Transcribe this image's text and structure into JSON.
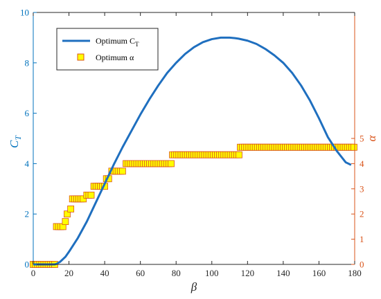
{
  "chart_data": {
    "type": "line",
    "xlabel": "β",
    "ylabel_left": "C",
    "ylabel_left_sub": "T",
    "ylabel_right": "α",
    "xlim": [
      0,
      180
    ],
    "ylim_left": [
      0,
      10
    ],
    "ylim_right": [
      0,
      10
    ],
    "right_axis_max_tick": 5,
    "x_ticks": [
      0,
      20,
      40,
      60,
      80,
      100,
      120,
      140,
      160,
      180
    ],
    "y_left_ticks": [
      0,
      2,
      4,
      6,
      8,
      10
    ],
    "y_right_ticks": [
      0,
      1,
      2,
      3,
      4,
      5
    ],
    "grid": false,
    "legend_position": "top-left",
    "colors": {
      "ct_line": "#1f6fbf",
      "alpha_fill": "#ffff00",
      "alpha_edge": "#d95319",
      "left_axis": "#0072bd",
      "right_axis": "#d95319",
      "axis_black": "#262626"
    },
    "series": [
      {
        "name": "Optimum C",
        "name_sub": "T",
        "axis": "left",
        "style": "line",
        "x": [
          0,
          12,
          13,
          15,
          18,
          20,
          25,
          30,
          35,
          40,
          45,
          50,
          55,
          60,
          65,
          70,
          75,
          80,
          85,
          90,
          95,
          100,
          105,
          110,
          113,
          115,
          120,
          125,
          130,
          135,
          140,
          145,
          150,
          155,
          160,
          165,
          170,
          175,
          178
        ],
        "y": [
          0,
          0,
          0.02,
          0.1,
          0.3,
          0.5,
          1.05,
          1.7,
          2.45,
          3.2,
          3.95,
          4.65,
          5.3,
          5.95,
          6.55,
          7.1,
          7.6,
          8.0,
          8.35,
          8.62,
          8.82,
          8.94,
          9.0,
          9.0,
          8.98,
          8.96,
          8.88,
          8.75,
          8.55,
          8.3,
          8.0,
          7.6,
          7.1,
          6.5,
          5.8,
          5.05,
          4.5,
          4.05,
          3.95
        ]
      },
      {
        "name": "Optimum α",
        "axis": "right",
        "style": "marker",
        "points": [
          {
            "from": 0,
            "to": 13,
            "value": 0
          },
          {
            "from": 13,
            "to": 17,
            "value": 1.5
          },
          {
            "from": 18,
            "to": 18,
            "value": 1.7
          },
          {
            "from": 19,
            "to": 20,
            "value": 2.0
          },
          {
            "from": 21,
            "to": 22,
            "value": 2.2
          },
          {
            "from": 22,
            "to": 29,
            "value": 2.6
          },
          {
            "from": 30,
            "to": 33,
            "value": 2.75
          },
          {
            "from": 34,
            "to": 41,
            "value": 3.1
          },
          {
            "from": 41,
            "to": 43,
            "value": 3.4
          },
          {
            "from": 44,
            "to": 51,
            "value": 3.7
          },
          {
            "from": 52,
            "to": 78,
            "value": 4.0
          },
          {
            "from": 78,
            "to": 116,
            "value": 4.35
          },
          {
            "from": 116,
            "to": 180,
            "value": 4.65
          }
        ]
      }
    ]
  }
}
